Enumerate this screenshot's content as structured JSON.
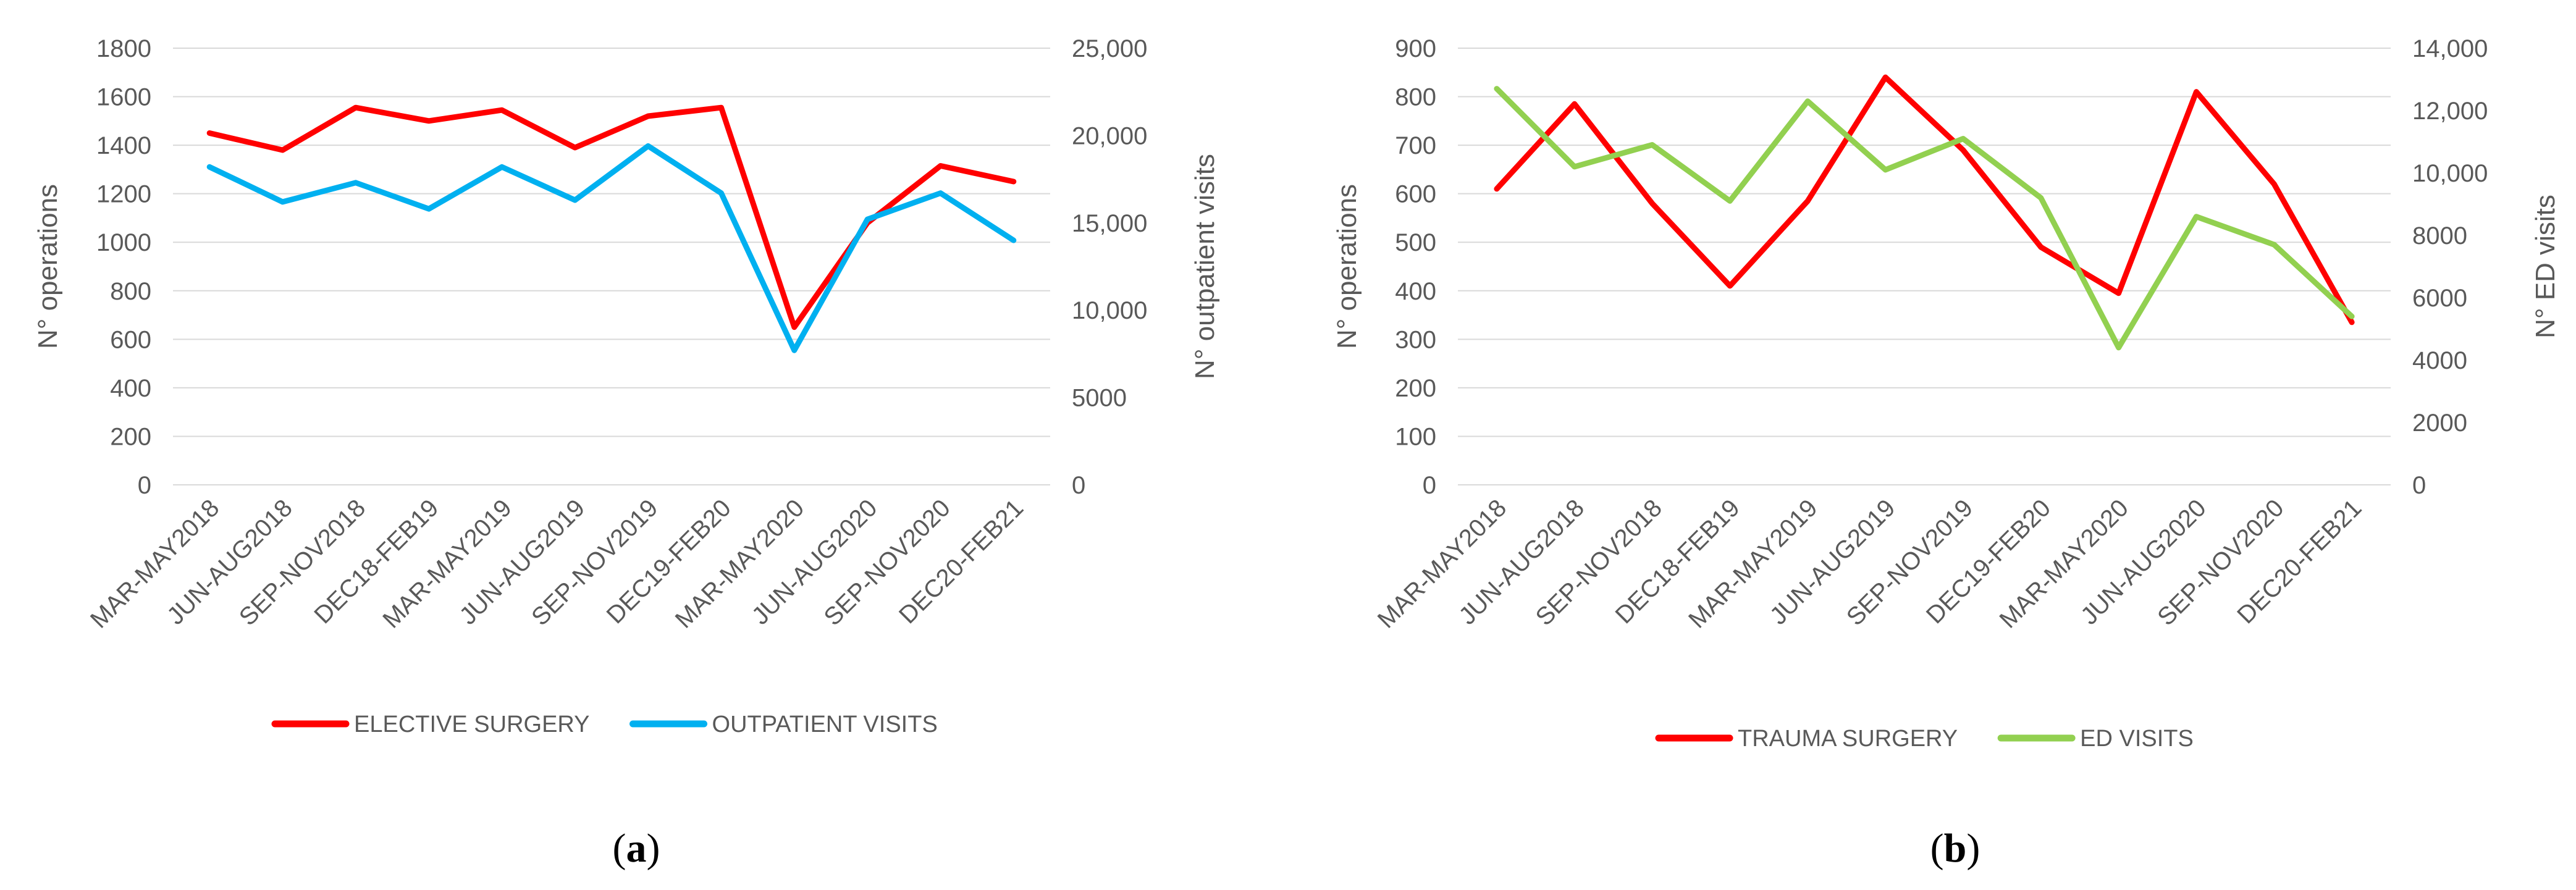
{
  "chart_data": [
    {
      "type": "line",
      "panel_label_open": "(",
      "panel_label_letter": "a",
      "panel_label_close": ")",
      "categories": [
        "MAR-MAY2018",
        "JUN-AUG2018",
        "SEP-NOV2018",
        "DEC18-FEB19",
        "MAR-MAY2019",
        "JUN-AUG2019",
        "SEP-NOV2019",
        "DEC19-FEB20",
        "MAR-MAY2020",
        "JUN-AUG2020",
        "SEP-NOV2020",
        "DEC20-FEB21"
      ],
      "ylabel_left": "N° operations",
      "ylabel_right": "N° outpatient visits",
      "ylim_left": [
        0,
        1800
      ],
      "ylim_right": [
        0,
        25000
      ],
      "yticks_left": [
        "0",
        "200",
        "400",
        "600",
        "800",
        "1000",
        "1200",
        "1400",
        "1600",
        "1800"
      ],
      "yticks_right": [
        "0",
        "5000",
        "10,000",
        "15,000",
        "20,000",
        "25,000"
      ],
      "legend_position": "bottom",
      "grid": "horizontal",
      "series": [
        {
          "name": "ELECTIVE SURGERY",
          "axis": "left",
          "color": "#FF0000",
          "values": [
            1450,
            1380,
            1555,
            1500,
            1545,
            1390,
            1520,
            1555,
            650,
            1080,
            1315,
            1250
          ]
        },
        {
          "name": "OUTPATIENT VISITS",
          "axis": "right",
          "color": "#00B0F0",
          "values": [
            18200,
            16200,
            17300,
            15800,
            18200,
            16300,
            19400,
            16700,
            7700,
            15200,
            16700,
            14000
          ]
        }
      ]
    },
    {
      "type": "line",
      "panel_label_open": "(",
      "panel_label_letter": "b",
      "panel_label_close": ")",
      "categories": [
        "MAR-MAY2018",
        "JUN-AUG2018",
        "SEP-NOV2018",
        "DEC18-FEB19",
        "MAR-MAY2019",
        "JUN-AUG2019",
        "SEP-NOV2019",
        "DEC19-FEB20",
        "MAR-MAY2020",
        "JUN-AUG2020",
        "SEP-NOV2020",
        "DEC20-FEB21"
      ],
      "ylabel_left": "N° operations",
      "ylabel_right": "N° ED visits",
      "ylim_left": [
        0,
        900
      ],
      "ylim_right": [
        0,
        14000
      ],
      "yticks_left": [
        "0",
        "100",
        "200",
        "300",
        "400",
        "500",
        "600",
        "700",
        "800",
        "900"
      ],
      "yticks_right": [
        "0",
        "2000",
        "4000",
        "6000",
        "8000",
        "10,000",
        "12,000",
        "14,000"
      ],
      "legend_position": "bottom",
      "grid": "horizontal",
      "series": [
        {
          "name": "TRAUMA SURGERY",
          "axis": "left",
          "color": "#FF0000",
          "values": [
            610,
            785,
            580,
            410,
            585,
            840,
            690,
            490,
            395,
            810,
            620,
            335
          ]
        },
        {
          "name": "ED VISITS",
          "axis": "right",
          "color": "#92D050",
          "values": [
            12700,
            10200,
            10900,
            9100,
            12300,
            10100,
            11100,
            9200,
            4400,
            8600,
            7700,
            5400
          ]
        }
      ]
    }
  ]
}
